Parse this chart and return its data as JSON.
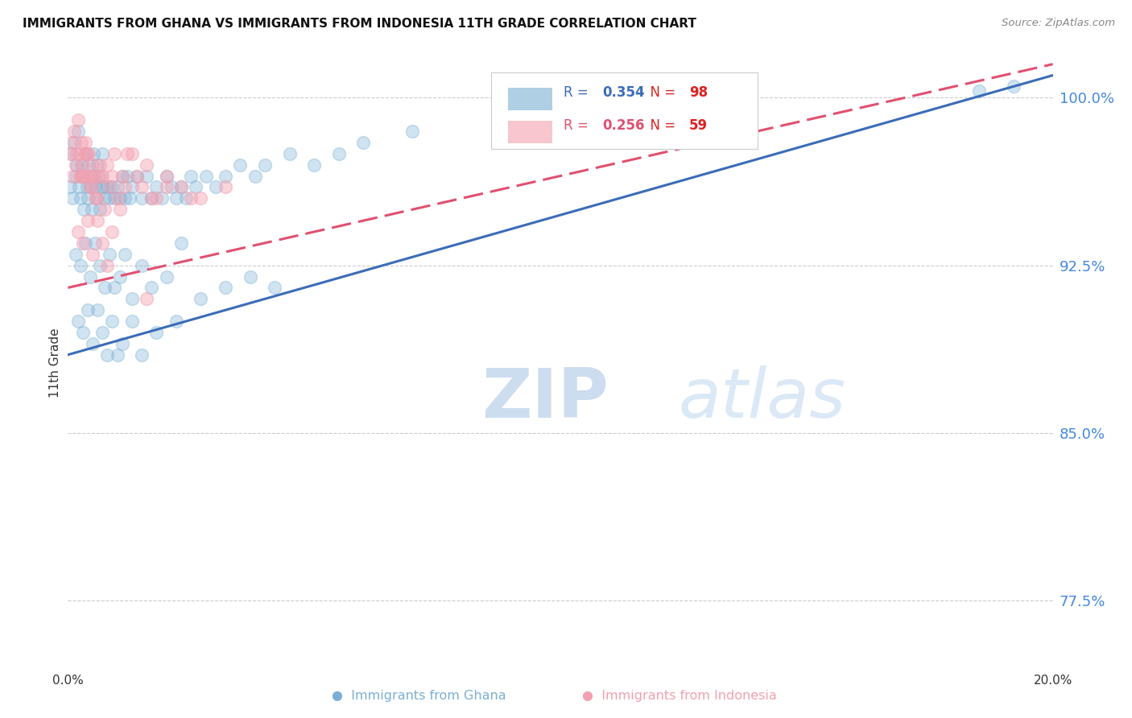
{
  "title": "IMMIGRANTS FROM GHANA VS IMMIGRANTS FROM INDONESIA 11TH GRADE CORRELATION CHART",
  "source": "Source: ZipAtlas.com",
  "ylabel": "11th Grade",
  "yticks": [
    77.5,
    85.0,
    92.5,
    100.0
  ],
  "ytick_labels": [
    "77.5%",
    "85.0%",
    "92.5%",
    "100.0%"
  ],
  "xmin": 0.0,
  "xmax": 20.0,
  "ymin": 74.5,
  "ymax": 101.8,
  "ghana_R": 0.354,
  "ghana_N": 98,
  "indonesia_R": 0.256,
  "indonesia_N": 59,
  "ghana_color": "#7BAFD4",
  "indonesia_color": "#F4A0B0",
  "ghana_line_color": "#3B6CB7",
  "indonesia_line_color": "#E05070",
  "legend_R_color": "#3B6CB7",
  "legend_R2_color": "#E05070",
  "legend_N_color": "#DD2222",
  "watermark_color": "#C8D8F0",
  "ghana_line_x0": 0.0,
  "ghana_line_y0": 88.5,
  "ghana_line_x1": 20.0,
  "ghana_line_y1": 101.0,
  "indonesia_line_x0": 0.0,
  "indonesia_line_y0": 91.5,
  "indonesia_line_x1": 20.0,
  "indonesia_line_y1": 101.5,
  "ghana_points_x": [
    0.05,
    0.08,
    0.1,
    0.12,
    0.15,
    0.18,
    0.2,
    0.22,
    0.25,
    0.28,
    0.3,
    0.32,
    0.35,
    0.38,
    0.4,
    0.42,
    0.45,
    0.48,
    0.5,
    0.52,
    0.55,
    0.58,
    0.6,
    0.62,
    0.65,
    0.68,
    0.7,
    0.72,
    0.75,
    0.8,
    0.85,
    0.9,
    0.95,
    1.0,
    1.05,
    1.1,
    1.15,
    1.2,
    1.25,
    1.3,
    1.4,
    1.5,
    1.6,
    1.7,
    1.8,
    1.9,
    2.0,
    2.1,
    2.2,
    2.3,
    2.4,
    2.5,
    2.6,
    2.8,
    3.0,
    3.2,
    3.5,
    3.8,
    4.0,
    4.5,
    5.0,
    5.5,
    6.0,
    7.0,
    0.15,
    0.25,
    0.35,
    0.45,
    0.55,
    0.65,
    0.75,
    0.85,
    0.95,
    1.05,
    1.15,
    1.3,
    1.5,
    1.7,
    2.0,
    2.3,
    2.7,
    3.2,
    3.7,
    4.2,
    0.2,
    0.3,
    0.4,
    0.5,
    0.6,
    0.7,
    0.8,
    0.9,
    1.0,
    1.1,
    1.3,
    1.5,
    1.8,
    2.2,
    18.5,
    19.2
  ],
  "ghana_points_y": [
    96.0,
    97.5,
    95.5,
    98.0,
    96.5,
    97.0,
    98.5,
    96.0,
    95.5,
    97.0,
    96.5,
    95.0,
    97.5,
    96.0,
    95.5,
    97.0,
    96.0,
    95.0,
    96.5,
    97.5,
    96.0,
    95.5,
    97.0,
    96.5,
    95.0,
    96.0,
    97.5,
    96.0,
    95.5,
    96.0,
    95.5,
    96.0,
    95.5,
    96.0,
    95.5,
    96.5,
    95.5,
    96.5,
    95.5,
    96.0,
    96.5,
    95.5,
    96.5,
    95.5,
    96.0,
    95.5,
    96.5,
    96.0,
    95.5,
    96.0,
    95.5,
    96.5,
    96.0,
    96.5,
    96.0,
    96.5,
    97.0,
    96.5,
    97.0,
    97.5,
    97.0,
    97.5,
    98.0,
    98.5,
    93.0,
    92.5,
    93.5,
    92.0,
    93.5,
    92.5,
    91.5,
    93.0,
    91.5,
    92.0,
    93.0,
    91.0,
    92.5,
    91.5,
    92.0,
    93.5,
    91.0,
    91.5,
    92.0,
    91.5,
    90.0,
    89.5,
    90.5,
    89.0,
    90.5,
    89.5,
    88.5,
    90.0,
    88.5,
    89.0,
    90.0,
    88.5,
    89.5,
    90.0,
    100.3,
    100.5
  ],
  "indonesia_points_x": [
    0.05,
    0.08,
    0.1,
    0.12,
    0.15,
    0.18,
    0.2,
    0.22,
    0.25,
    0.28,
    0.3,
    0.32,
    0.35,
    0.38,
    0.4,
    0.42,
    0.45,
    0.48,
    0.5,
    0.55,
    0.6,
    0.65,
    0.7,
    0.8,
    0.9,
    1.0,
    1.1,
    1.2,
    1.4,
    1.6,
    1.8,
    2.0,
    2.3,
    2.7,
    3.2,
    0.25,
    0.35,
    0.45,
    0.55,
    0.65,
    0.75,
    0.85,
    0.95,
    1.05,
    1.15,
    1.3,
    1.5,
    1.7,
    2.0,
    2.5,
    0.2,
    0.3,
    0.4,
    0.5,
    0.6,
    0.7,
    0.8,
    0.9,
    1.6
  ],
  "indonesia_points_y": [
    97.5,
    98.0,
    96.5,
    98.5,
    97.0,
    97.5,
    99.0,
    97.5,
    96.5,
    98.0,
    97.0,
    96.5,
    98.0,
    97.5,
    96.5,
    97.5,
    96.5,
    96.0,
    97.0,
    96.5,
    95.5,
    97.0,
    96.5,
    97.0,
    96.5,
    95.5,
    96.5,
    97.5,
    96.5,
    97.0,
    95.5,
    96.5,
    96.0,
    95.5,
    96.0,
    96.5,
    97.5,
    96.0,
    95.5,
    96.5,
    95.0,
    96.0,
    97.5,
    95.0,
    96.0,
    97.5,
    96.0,
    95.5,
    96.0,
    95.5,
    94.0,
    93.5,
    94.5,
    93.0,
    94.5,
    93.5,
    92.5,
    94.0,
    91.0
  ]
}
